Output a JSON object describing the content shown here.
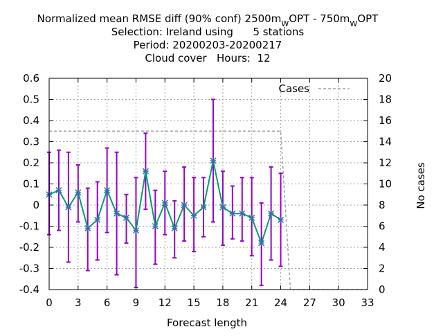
{
  "chart_data": {
    "type": "line",
    "title_lines": [
      "Normalized mean RMSE diff (90% conf) 2500m",
      "W",
      "OPT - 750m",
      "W",
      "OPT"
    ],
    "title": {
      "line1_part1": "Normalized mean RMSE diff (90% conf) 2500m",
      "line1_sub1": "W",
      "line1_part2": "OPT - 750m",
      "line1_sub2": "W",
      "line1_part3": "OPT",
      "line2": "Selection: Ireland using      5 stations",
      "line3": "Period: 20200203-20200217",
      "line4": "Cloud cover   Hours:  12"
    },
    "xlabel": "Forecast length",
    "y2label": "No cases",
    "xlim": [
      0,
      33
    ],
    "ylim": [
      -0.4,
      0.6
    ],
    "y2lim": [
      0,
      20
    ],
    "x_ticks": [
      "0",
      "3",
      "6",
      "9",
      "12",
      "15",
      "18",
      "21",
      "24",
      "27",
      "30",
      "33"
    ],
    "y_ticks": [
      "-0.4",
      "-0.3",
      "-0.2",
      "-0.1",
      "0",
      "0.1",
      "0.2",
      "0.3",
      "0.4",
      "0.5",
      "0.6"
    ],
    "y2_ticks": [
      "0",
      "2",
      "4",
      "6",
      "8",
      "10",
      "12",
      "14",
      "16",
      "18",
      "20"
    ],
    "grid": true,
    "legend": {
      "position": "top-right",
      "entries": [
        "Cases"
      ]
    },
    "series": [
      {
        "style": "line-errorbars",
        "line_color": "#009e73",
        "marker_color": "#3a6db0",
        "error_color": "#9400d3",
        "x": [
          0,
          1,
          2,
          3,
          4,
          5,
          6,
          7,
          8,
          9,
          10,
          11,
          12,
          13,
          14,
          15,
          16,
          17,
          18,
          19,
          20,
          21,
          22,
          23,
          24
        ],
        "y": [
          0.05,
          0.07,
          -0.01,
          0.06,
          -0.11,
          -0.07,
          0.07,
          -0.04,
          -0.06,
          -0.12,
          0.16,
          -0.1,
          0.01,
          -0.11,
          0.0,
          -0.05,
          -0.01,
          0.21,
          -0.01,
          -0.04,
          -0.04,
          -0.06,
          -0.18,
          -0.04,
          -0.07
        ],
        "low": [
          -0.14,
          -0.12,
          -0.27,
          -0.08,
          -0.31,
          -0.26,
          -0.13,
          -0.33,
          -0.18,
          -0.39,
          -0.02,
          -0.28,
          -0.14,
          -0.25,
          -0.17,
          -0.22,
          -0.15,
          -0.08,
          -0.19,
          -0.16,
          -0.17,
          -0.24,
          -0.38,
          -0.26,
          -0.29
        ],
        "high": [
          0.25,
          0.26,
          0.25,
          0.19,
          0.08,
          0.11,
          0.27,
          0.25,
          0.05,
          0.13,
          0.34,
          0.07,
          0.16,
          0.02,
          0.18,
          0.13,
          0.13,
          0.5,
          0.16,
          0.09,
          0.13,
          0.13,
          0.01,
          0.18,
          0.15
        ]
      },
      {
        "name": "Cases",
        "style": "dashed-line",
        "axis": "y2",
        "color": "#a0a0a0",
        "x": [
          0,
          1,
          2,
          3,
          4,
          5,
          6,
          7,
          8,
          9,
          10,
          11,
          12,
          13,
          14,
          15,
          16,
          17,
          18,
          19,
          20,
          21,
          22,
          23,
          24,
          25,
          26,
          27,
          28,
          29,
          30,
          31,
          32,
          33
        ],
        "values": [
          15,
          15,
          15,
          15,
          15,
          15,
          15,
          15,
          15,
          15,
          15,
          15,
          15,
          15,
          15,
          15,
          15,
          15,
          15,
          15,
          15,
          15,
          15,
          15,
          15,
          0,
          0,
          0,
          0,
          0,
          0,
          0,
          0,
          0
        ]
      }
    ]
  }
}
